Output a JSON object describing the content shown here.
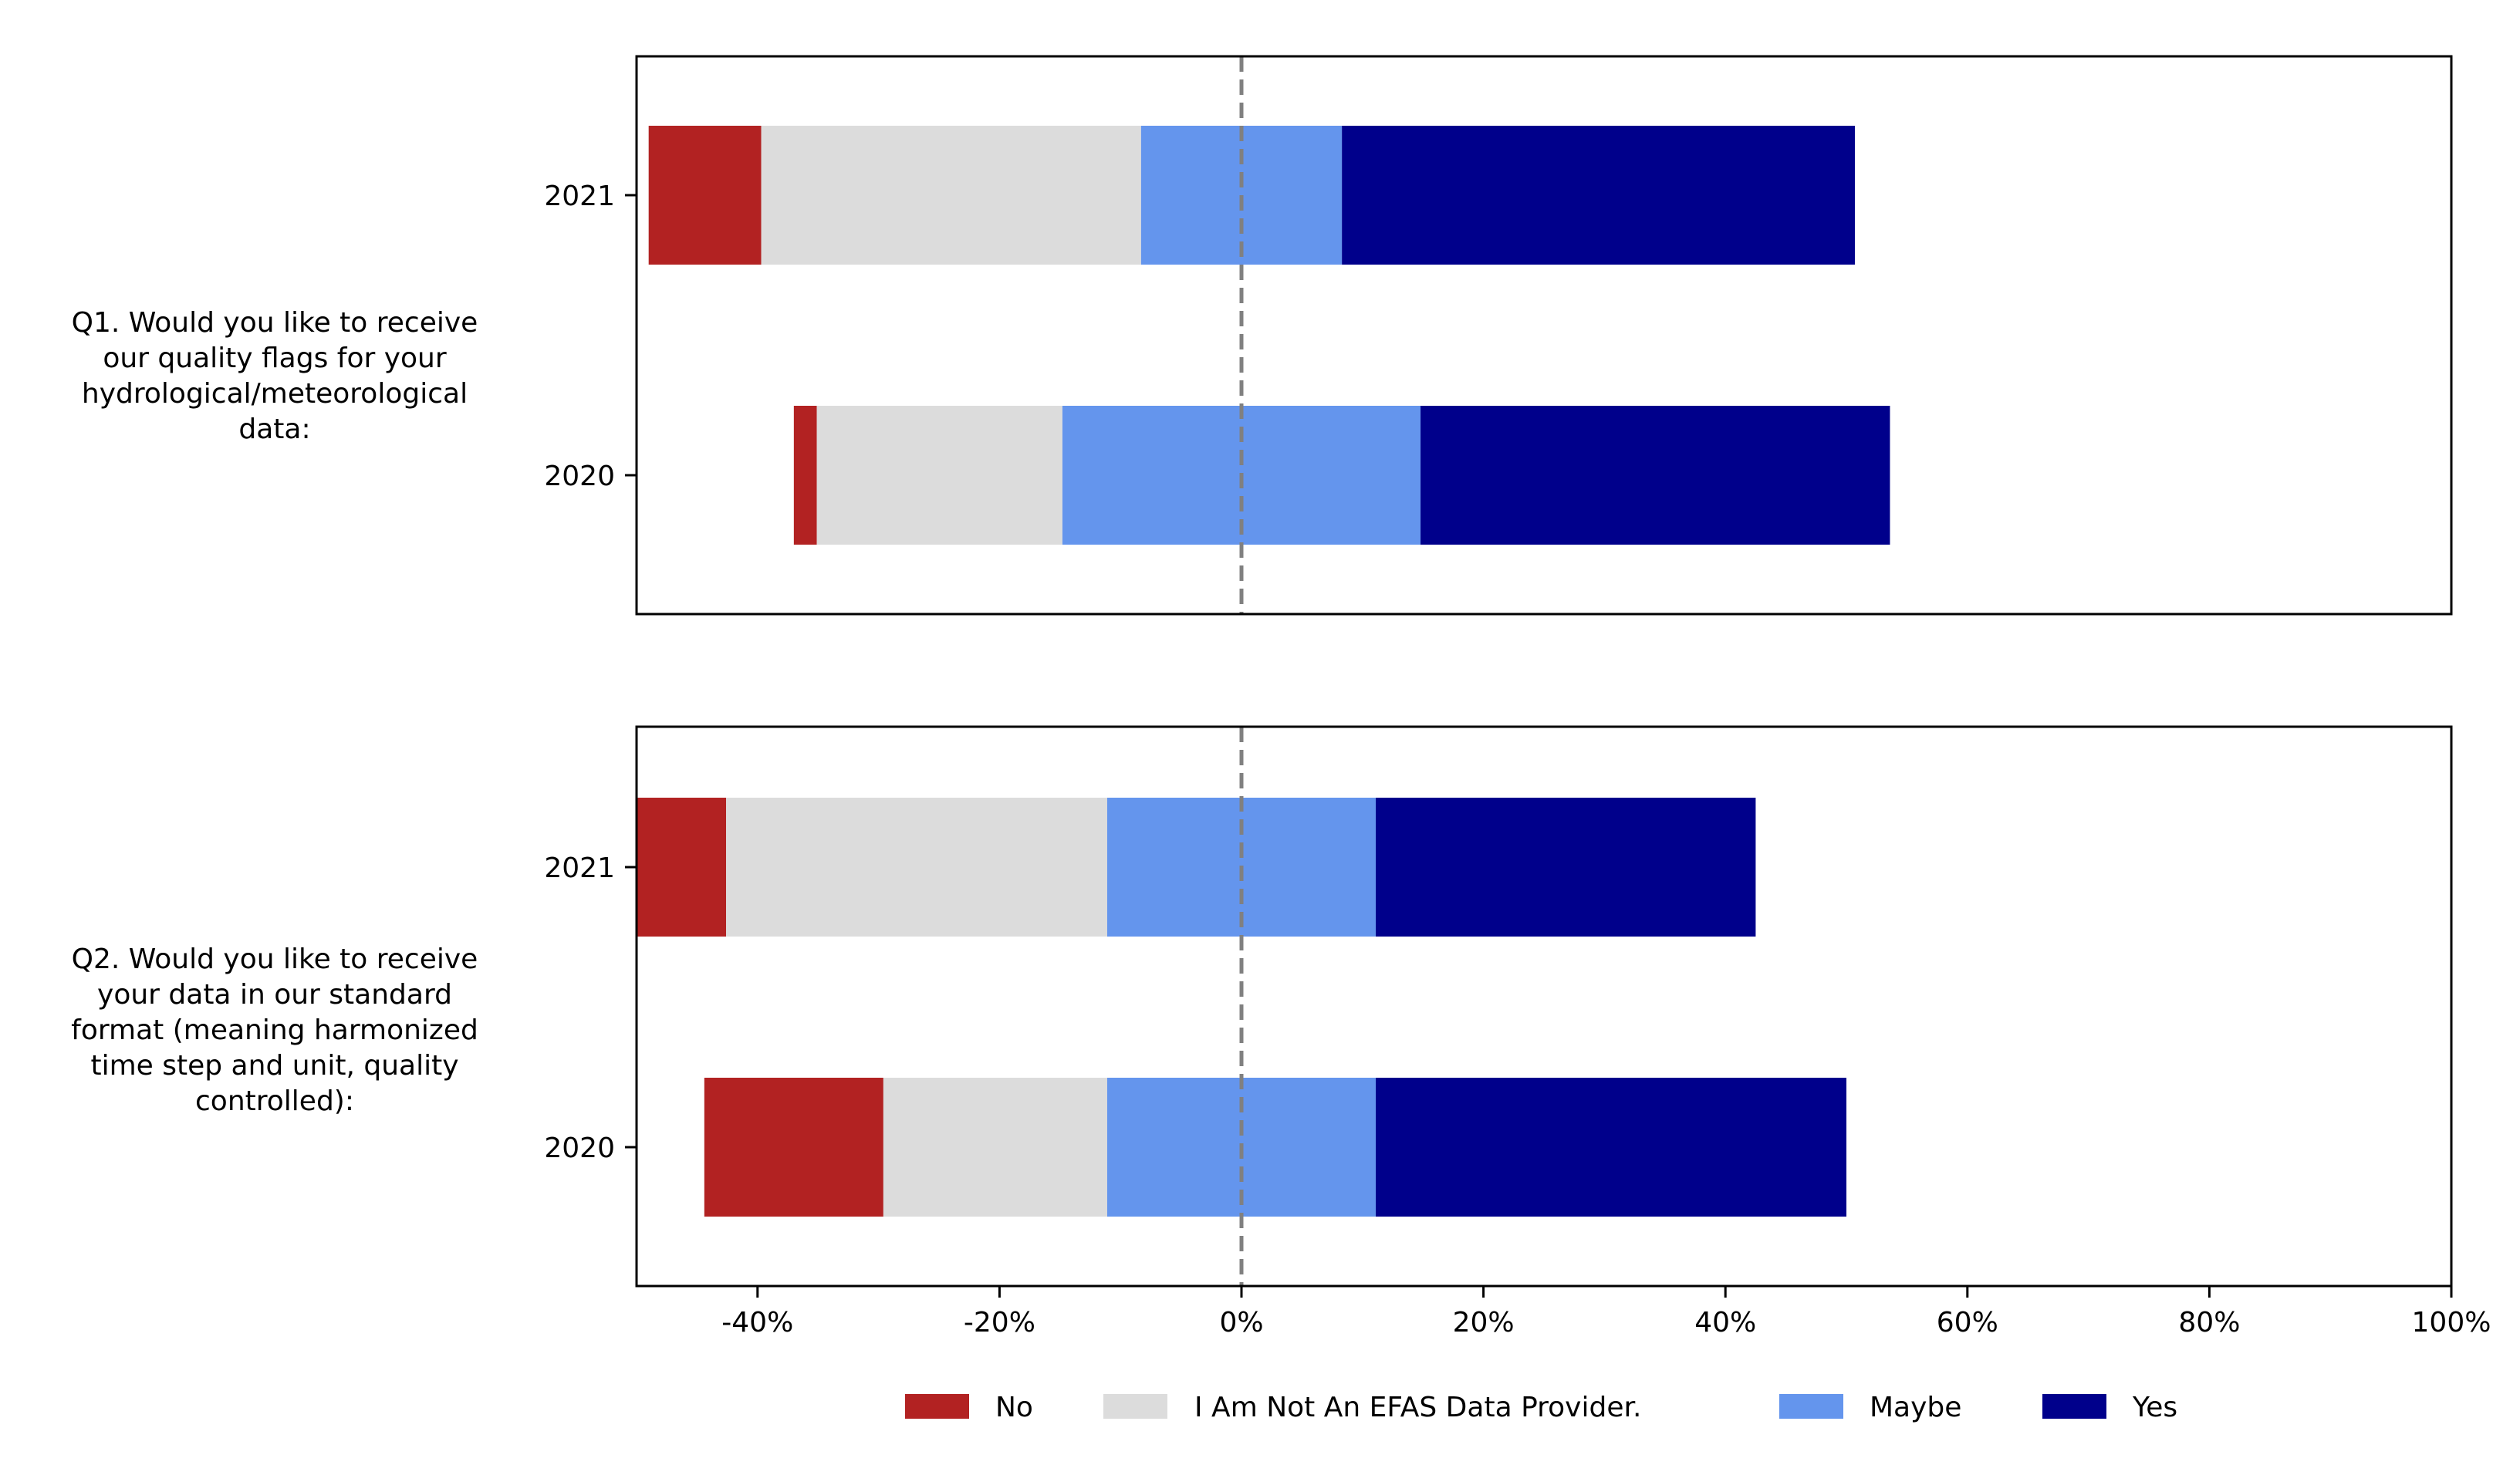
{
  "chart_data": {
    "type": "bar",
    "orientation": "horizontal-diverging-stacked",
    "xlim": [
      -50,
      100
    ],
    "x_ticks": [
      "-40%",
      "-20%",
      "0%",
      "20%",
      "40%",
      "60%",
      "80%",
      "100%"
    ],
    "x_tick_values": [
      -40,
      -20,
      0,
      20,
      40,
      60,
      80,
      100
    ],
    "reference_line": 0,
    "legend": [
      "No",
      "I Am Not An EFAS Data Provider.",
      "Maybe",
      "Yes"
    ],
    "legend_placement": "bottom-center",
    "colors": [
      "#b22222",
      "#dcdcdc",
      "#6495ed",
      "#00008b"
    ],
    "panels": [
      {
        "question_lines": [
          "Q1. Would you like to receive",
          "our quality flags for your",
          "hydrological/meteorological",
          "data:"
        ],
        "categories": [
          "2021",
          "2020"
        ],
        "series": [
          {
            "name": "No",
            "values": [
              9.3,
              1.9
            ]
          },
          {
            "name": "I Am Not An EFAS Data Provider.",
            "values": [
              31.4,
              20.3
            ]
          },
          {
            "name": "Maybe",
            "values": [
              16.6,
              29.6
            ]
          },
          {
            "name": "Yes",
            "values": [
              42.4,
              38.8
            ]
          }
        ]
      },
      {
        "question_lines": [
          "Q2. Would you like to receive",
          "your data in our standard",
          "format (meaning harmonized",
          "time step and unit, quality",
          "controlled):"
        ],
        "categories": [
          "2021",
          "2020"
        ],
        "series": [
          {
            "name": "No",
            "values": [
              14.8,
              14.8
            ]
          },
          {
            "name": "I Am Not An EFAS Data Provider.",
            "values": [
              31.5,
              18.5
            ]
          },
          {
            "name": "Maybe",
            "values": [
              22.2,
              22.2
            ]
          },
          {
            "name": "Yes",
            "values": [
              31.4,
              38.9
            ]
          }
        ]
      }
    ]
  }
}
